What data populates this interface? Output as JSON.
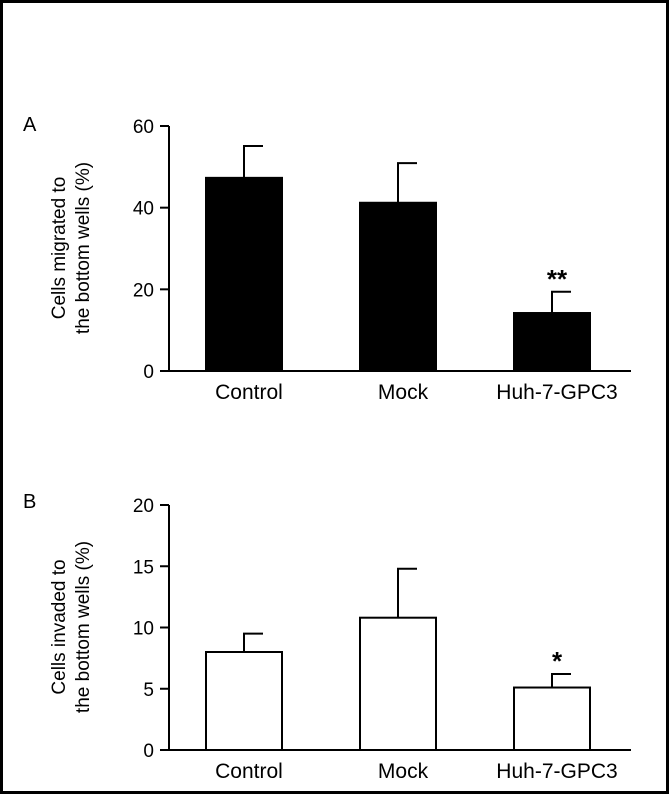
{
  "chart_data": [
    {
      "panel": "A",
      "type": "bar",
      "ylabel_lines": [
        "Cells migrated to",
        "the bottom wells (%)"
      ],
      "categories": [
        "Control",
        "Mock",
        "Huh-7-GPC3"
      ],
      "values": [
        47.3,
        41.2,
        14.2
      ],
      "errors": [
        7.8,
        9.7,
        5.2
      ],
      "significance": [
        "",
        "",
        "**"
      ],
      "ylim": [
        0,
        60
      ],
      "yticks": [
        0,
        20,
        40,
        60
      ],
      "bar_fill": "#000000",
      "grid": false
    },
    {
      "panel": "B",
      "type": "bar",
      "ylabel_lines": [
        "Cells invaded to",
        "the bottom wells (%)"
      ],
      "categories": [
        "Control",
        "Mock",
        "Huh-7-GPC3"
      ],
      "values": [
        8.0,
        10.8,
        5.1
      ],
      "errors": [
        1.5,
        4.0,
        1.1
      ],
      "significance": [
        "",
        "",
        "*"
      ],
      "ylim": [
        0,
        20
      ],
      "yticks": [
        0,
        5,
        10,
        15,
        20
      ],
      "bar_fill": "#ffffff",
      "grid": false
    }
  ]
}
